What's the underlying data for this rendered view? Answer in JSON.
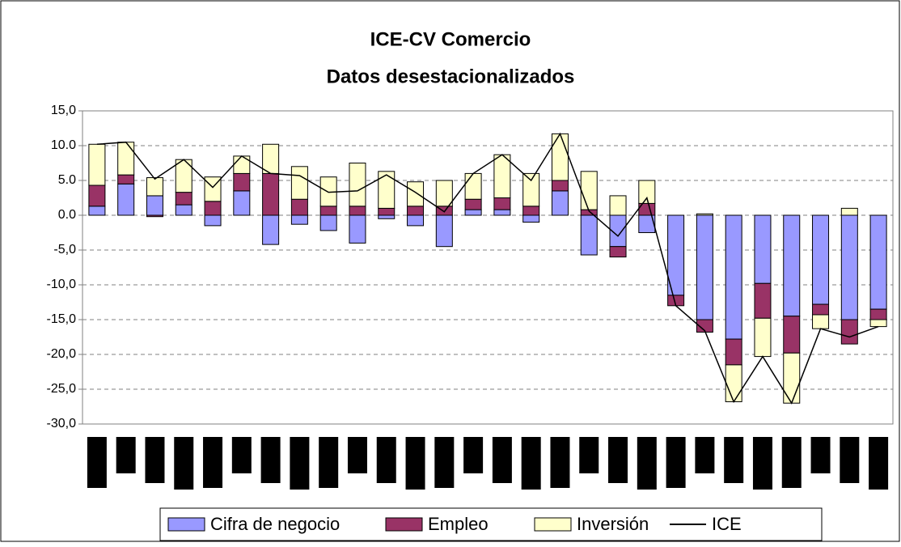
{
  "chart_data": {
    "type": "bar",
    "stacked": true,
    "title": "ICE-CV Comercio",
    "subtitle": "Datos desestacionalizados",
    "categories": [
      null,
      null,
      null,
      null,
      null,
      null,
      null,
      null,
      null,
      null,
      null,
      null,
      null,
      null,
      null,
      null,
      null,
      null,
      null,
      null,
      null,
      null,
      null,
      null,
      null,
      null,
      null,
      null
    ],
    "series": [
      {
        "name": "Cifra de negocio",
        "type": "bar",
        "color": "#9999ff",
        "values": [
          1.3,
          4.5,
          2.8,
          1.5,
          -1.5,
          3.5,
          -4.2,
          -1.3,
          -2.2,
          -4.0,
          -0.5,
          -1.5,
          -4.5,
          0.8,
          0.8,
          -1.0,
          3.5,
          -5.7,
          -4.5,
          -2.5,
          -11.5,
          -15.0,
          -17.8,
          -9.8,
          -14.5,
          -12.8,
          -15.0,
          -13.5
        ]
      },
      {
        "name": "Empleo",
        "type": "bar",
        "color": "#993366",
        "values": [
          3.0,
          1.3,
          -0.2,
          1.8,
          2.0,
          2.5,
          6.0,
          2.3,
          1.3,
          1.3,
          1.0,
          1.3,
          1.3,
          1.5,
          1.7,
          1.3,
          1.5,
          0.8,
          -1.5,
          1.7,
          -1.5,
          -1.8,
          -3.7,
          -5.0,
          -5.3,
          -1.5,
          -3.5,
          -1.5
        ]
      },
      {
        "name": "Inversión",
        "type": "bar",
        "color": "#ffffcc",
        "values": [
          5.9,
          4.7,
          2.6,
          4.7,
          3.5,
          2.5,
          4.2,
          4.7,
          4.2,
          6.2,
          5.3,
          3.5,
          3.7,
          3.7,
          6.2,
          4.7,
          6.7,
          5.5,
          2.8,
          3.3,
          0,
          0.2,
          -5.3,
          -5.5,
          -7.2,
          -2.0,
          1.0,
          -1.0
        ]
      },
      {
        "name": "ICE",
        "type": "line",
        "color": "#000000",
        "values": [
          10.2,
          10.5,
          5.2,
          8.0,
          4.0,
          8.5,
          6.0,
          5.7,
          3.3,
          3.5,
          5.8,
          3.3,
          0.5,
          6.0,
          8.7,
          5.0,
          11.7,
          0.6,
          -3.0,
          2.5,
          -13.0,
          -16.6,
          -26.8,
          -20.3,
          -27.0,
          -16.3,
          -17.5,
          -16.0
        ]
      }
    ],
    "ylim": [
      -30,
      15
    ],
    "yticks": [
      {
        "value": -30,
        "label": "-30,0"
      },
      {
        "value": -25,
        "label": "-25,0"
      },
      {
        "value": -20,
        "label": "-20,0"
      },
      {
        "value": -15,
        "label": "-15,0"
      },
      {
        "value": -10,
        "label": "-10,0"
      },
      {
        "value": -5,
        "label": "-5,0"
      },
      {
        "value": 0,
        "label": "0.0"
      },
      {
        "value": 5,
        "label": "5.0"
      },
      {
        "value": 10,
        "label": "10.0"
      },
      {
        "value": 15,
        "label": "15,0"
      }
    ],
    "grid": true,
    "legend": "bottom"
  }
}
